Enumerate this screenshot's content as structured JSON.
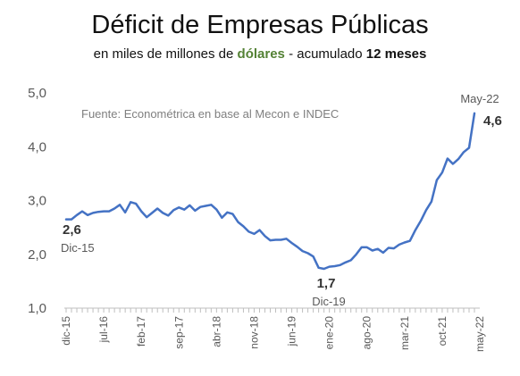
{
  "chart_data": {
    "type": "line",
    "title": "Déficit de Empresas Públicas",
    "subtitle": {
      "prefix": "en miles de millones de ",
      "highlight": "dólares",
      "mid": " - acumulado ",
      "bold": "12 meses"
    },
    "source": "Fuente: Econométrica en base al Mecon e INDEC",
    "ylim": [
      1.0,
      5.0
    ],
    "yticks": [
      "1,0",
      "2,0",
      "3,0",
      "4,0",
      "5,0"
    ],
    "xticks": [
      "dic-15",
      "jul-16",
      "feb-17",
      "sep-17",
      "abr-18",
      "nov-18",
      "jun-19",
      "ene-20",
      "ago-20",
      "mar-21",
      "oct-21",
      "may-22"
    ],
    "line_color": "#4472c4",
    "series": [
      {
        "values": [
          2.65,
          2.65,
          2.73,
          2.8,
          2.73,
          2.77,
          2.79,
          2.8,
          2.8,
          2.85,
          2.92,
          2.78,
          2.97,
          2.94,
          2.8,
          2.69,
          2.77,
          2.85,
          2.77,
          2.72,
          2.82,
          2.87,
          2.83,
          2.91,
          2.81,
          2.88,
          2.9,
          2.92,
          2.83,
          2.68,
          2.78,
          2.75,
          2.6,
          2.52,
          2.42,
          2.38,
          2.45,
          2.34,
          2.26,
          2.27,
          2.27,
          2.29,
          2.21,
          2.14,
          2.06,
          2.02,
          1.96,
          1.75,
          1.73,
          1.77,
          1.78,
          1.8,
          1.85,
          1.89,
          2.0,
          2.13,
          2.13,
          2.07,
          2.1,
          2.03,
          2.12,
          2.11,
          2.18,
          2.22,
          2.25,
          2.45,
          2.62,
          2.82,
          2.98,
          3.38,
          3.52,
          3.78,
          3.68,
          3.77,
          3.9,
          3.98,
          4.62
        ]
      }
    ],
    "annotations": [
      {
        "value": "2,6",
        "date": "Dic-15"
      },
      {
        "value": "1,7",
        "date": "Dic-19"
      },
      {
        "value": "4,6",
        "date": "May-22"
      }
    ]
  }
}
